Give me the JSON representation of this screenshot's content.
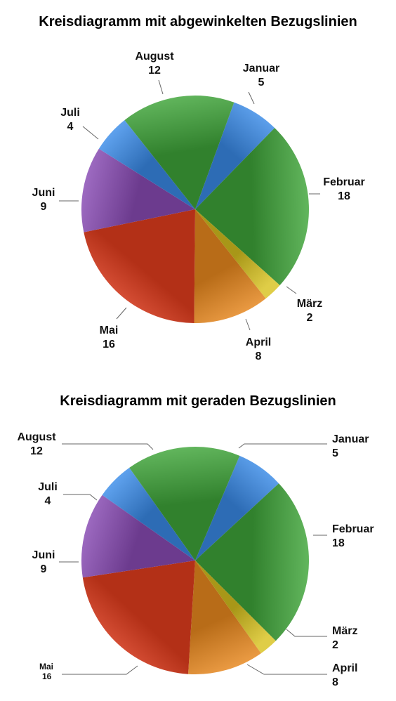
{
  "chart_data": [
    {
      "type": "pie",
      "title": "Kreisdiagramm mit abgewinkelten Bezugslinien",
      "leader_lines": "angled",
      "slices": [
        {
          "label": "Januar",
          "value": 5,
          "color": "#3a8be8"
        },
        {
          "label": "Februar",
          "value": 18,
          "color": "#3fa63a"
        },
        {
          "label": "März",
          "value": 2,
          "color": "#d8c21f"
        },
        {
          "label": "April",
          "value": 8,
          "color": "#ec8a1f"
        },
        {
          "label": "Mai",
          "value": 16,
          "color": "#e53d1e"
        },
        {
          "label": "Juni",
          "value": 9,
          "color": "#8a4cb6"
        },
        {
          "label": "Juli",
          "value": 4,
          "color": "#3a8be8"
        },
        {
          "label": "August",
          "value": 12,
          "color": "#3fa63a"
        }
      ]
    },
    {
      "type": "pie",
      "title": "Kreisdiagramm mit geraden Bezugslinien",
      "leader_lines": "straight",
      "slices": [
        {
          "label": "Januar",
          "value": 5,
          "color": "#3a8be8"
        },
        {
          "label": "Februar",
          "value": 18,
          "color": "#3fa63a"
        },
        {
          "label": "März",
          "value": 2,
          "color": "#d8c21f"
        },
        {
          "label": "April",
          "value": 8,
          "color": "#ec8a1f"
        },
        {
          "label": "Mai",
          "value": 16,
          "color": "#e53d1e"
        },
        {
          "label": "Juni",
          "value": 9,
          "color": "#8a4cb6"
        },
        {
          "label": "Juli",
          "value": 4,
          "color": "#3a8be8"
        },
        {
          "label": "August",
          "value": 12,
          "color": "#3fa63a"
        }
      ]
    }
  ]
}
